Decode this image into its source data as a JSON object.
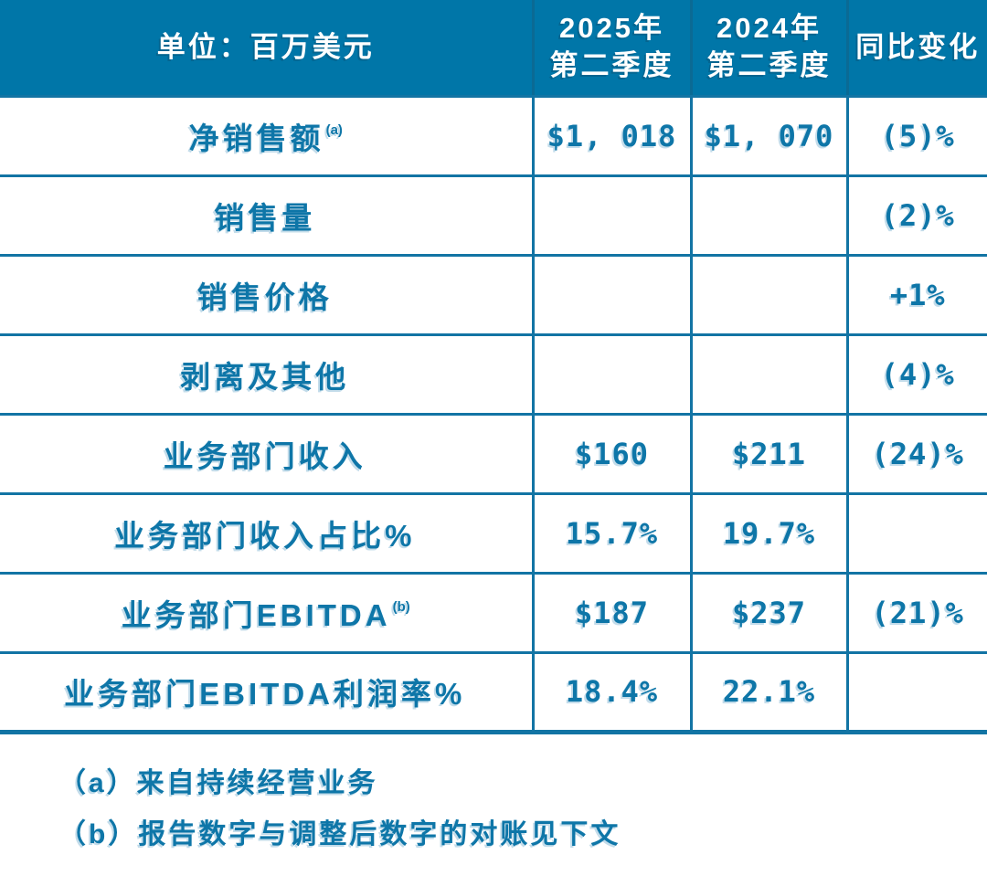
{
  "colors": {
    "header_bg": "#0076A8",
    "header_divider": "#0B6A94",
    "body_text": "#0E76A8",
    "grid_border": "#1274A4",
    "background": "#FFFFFF"
  },
  "header": {
    "col1": "单位：百万美元",
    "col2_line1": "2025年",
    "col2_line2": "第二季度",
    "col3_line1": "2024年",
    "col3_line2": "第二季度",
    "col4": "同比变化"
  },
  "chart_data": {
    "type": "table",
    "title": "单位：百万美元",
    "columns": [
      "单位：百万美元",
      "2025年第二季度",
      "2024年第二季度",
      "同比变化"
    ],
    "rows": [
      {
        "label": "净销售额",
        "sup": "(a)",
        "q2_2025": "$1, 018",
        "q2_2024": "$1, 070",
        "yoy": "(5)%"
      },
      {
        "label": "销售量",
        "sup": "",
        "q2_2025": "",
        "q2_2024": "",
        "yoy": "(2)%"
      },
      {
        "label": "销售价格",
        "sup": "",
        "q2_2025": "",
        "q2_2024": "",
        "yoy": "+1%"
      },
      {
        "label": "剥离及其他",
        "sup": "",
        "q2_2025": "",
        "q2_2024": "",
        "yoy": "(4)%"
      },
      {
        "label": "业务部门收入",
        "sup": "",
        "q2_2025": "$160",
        "q2_2024": "$211",
        "yoy": "(24)%"
      },
      {
        "label": "业务部门收入占比%",
        "sup": "",
        "q2_2025": "15.7%",
        "q2_2024": "19.7%",
        "yoy": ""
      },
      {
        "label": "业务部门EBITDA",
        "sup": "(b)",
        "q2_2025": "$187",
        "q2_2024": "$237",
        "yoy": "(21)%"
      },
      {
        "label": "业务部门EBITDA利润率%",
        "sup": "",
        "q2_2025": "18.4%",
        "q2_2024": "22.1%",
        "yoy": ""
      }
    ]
  },
  "footnotes": {
    "a": "（a）来自持续经营业务",
    "b": "（b）报告数字与调整后数字的对账见下文"
  }
}
